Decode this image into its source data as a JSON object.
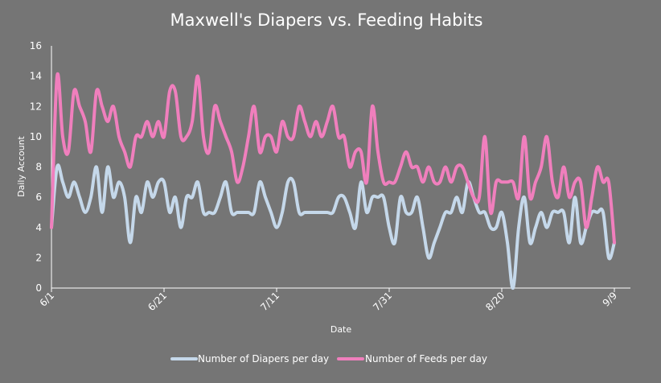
{
  "colors": {
    "background": "#757575",
    "diapers": "#c5d8ea",
    "feeds": "#f07fbd",
    "axis": "#ffffff"
  },
  "chart_data": {
    "type": "line",
    "title": "Maxwell's Diapers vs. Feeding Habits",
    "xlabel": "Date",
    "ylabel": "Daily Account",
    "ylim": [
      0,
      16
    ],
    "yticks": [
      0,
      2,
      4,
      6,
      8,
      10,
      12,
      14,
      16
    ],
    "xtick_labels": [
      "6/1",
      "6/21",
      "7/11",
      "7/31",
      "8/20",
      "9/9"
    ],
    "grid": false,
    "legend": "bottom",
    "x_start": "6/1",
    "x_end": "9/10",
    "series": [
      {
        "name": "Number of Diapers per day",
        "color": "#c5d8ea",
        "values": [
          4,
          8,
          7,
          6,
          7,
          6,
          5,
          6,
          8,
          5,
          8,
          6,
          7,
          6,
          3,
          6,
          5,
          7,
          6,
          7,
          7,
          5,
          6,
          4,
          6,
          6,
          7,
          5,
          5,
          5,
          6,
          7,
          5,
          5,
          5,
          5,
          5,
          7,
          6,
          5,
          4,
          5,
          7,
          7,
          5,
          5,
          5,
          5,
          5,
          5,
          5,
          6,
          6,
          5,
          4,
          7,
          5,
          6,
          6,
          6,
          4,
          3,
          6,
          5,
          5,
          6,
          4,
          2,
          3,
          4,
          5,
          5,
          6,
          5,
          7,
          6,
          5,
          5,
          4,
          4,
          5,
          3,
          0,
          4,
          6,
          3,
          4,
          5,
          4,
          5,
          5,
          5,
          3,
          6,
          3,
          4,
          5,
          5,
          5,
          2,
          3
        ]
      },
      {
        "name": "Number of Feeds per day",
        "color": "#f07fbd",
        "values": [
          4,
          14,
          10,
          9,
          13,
          12,
          11,
          9,
          13,
          12,
          11,
          12,
          10,
          9,
          8,
          10,
          10,
          11,
          10,
          11,
          10,
          13,
          13,
          10,
          10,
          11,
          14,
          10,
          9,
          12,
          11,
          10,
          9,
          7,
          8,
          10,
          12,
          9,
          10,
          10,
          9,
          11,
          10,
          10,
          12,
          11,
          10,
          11,
          10,
          11,
          12,
          10,
          10,
          8,
          9,
          9,
          7,
          12,
          9,
          7,
          7,
          7,
          8,
          9,
          8,
          8,
          7,
          8,
          7,
          7,
          8,
          7,
          8,
          8,
          7,
          6,
          6,
          10,
          5,
          7,
          7,
          7,
          7,
          6,
          10,
          6,
          7,
          8,
          10,
          7,
          6,
          8,
          6,
          7,
          7,
          4,
          6,
          8,
          7,
          7,
          3
        ]
      }
    ]
  }
}
